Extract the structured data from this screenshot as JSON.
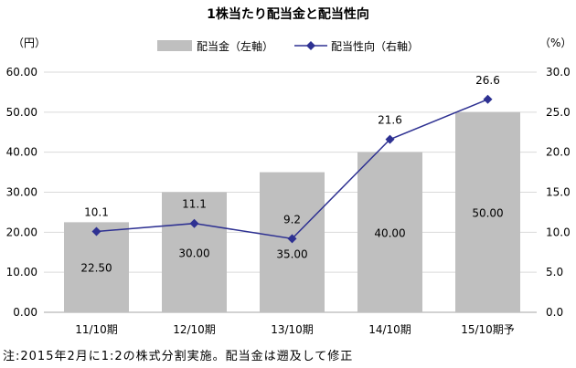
{
  "chart_data": {
    "type": "bar",
    "title": "1株当たり配当金と配当性向",
    "categories": [
      "11/10期",
      "12/10期",
      "13/10期",
      "14/10期",
      "15/10期予"
    ],
    "series": [
      {
        "name": "配当金（左軸）",
        "type": "bar",
        "axis": "left",
        "values": [
          22.5,
          30,
          35,
          40,
          50
        ],
        "data_labels": [
          "22.50",
          "30.00",
          "35.00",
          "40.00",
          "50.00"
        ],
        "color": "#bfbfbf"
      },
      {
        "name": "配当性向（右軸）",
        "type": "line",
        "axis": "right",
        "marker": "diamond",
        "values": [
          10.1,
          11.1,
          9.2,
          21.6,
          26.6
        ],
        "data_labels": [
          "10.1",
          "11.1",
          "9.2",
          "21.6",
          "26.6"
        ],
        "color": "#2e3192"
      }
    ],
    "y_left": {
      "label": "（円）",
      "ylim": [
        0,
        60
      ],
      "ticks": [
        "0.00",
        "10.00",
        "20.00",
        "30.00",
        "40.00",
        "50.00",
        "60.00"
      ]
    },
    "y_right": {
      "label": "（%）",
      "ylim": [
        0,
        30
      ],
      "ticks": [
        "0.0",
        "5.0",
        "10.0",
        "15.0",
        "20.0",
        "25.0",
        "30.0"
      ]
    },
    "grid": true,
    "legend_position": "top-center"
  },
  "footnote": "注:2015年2月に1:2の株式分割実施。配当金は遡及して修正"
}
